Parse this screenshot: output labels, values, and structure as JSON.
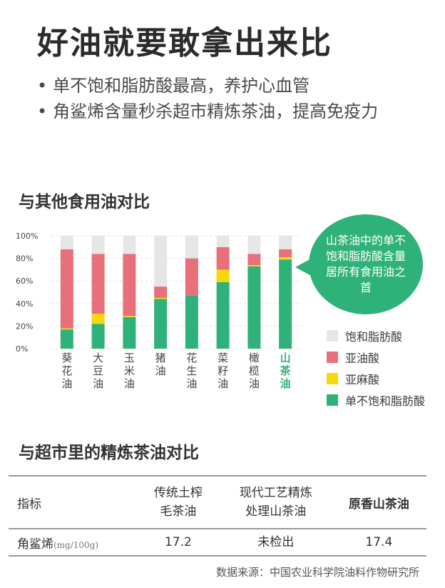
{
  "title": "好油就要敢拿出来比",
  "bullets": [
    "单不饱和脂肪酸最高，养护心血管",
    "角鲨烯含量秒杀超市精炼茶油，提高免疫力"
  ],
  "section1_title": "与其他食用油对比",
  "callout_text": "山茶油中的单不饱和脂肪酸含量居所有食用油之首",
  "chart_data": {
    "type": "bar",
    "stacked": true,
    "categories": [
      "葵花油",
      "大豆油",
      "玉米油",
      "猪油",
      "花生油",
      "菜籽油",
      "橄榄油",
      "山茶油"
    ],
    "highlight_category": "山茶油",
    "y_ticks": [
      "0%",
      "20%",
      "40%",
      "60%",
      "80%",
      "100%"
    ],
    "ylim": [
      0,
      100
    ],
    "grid": true,
    "legend_position": "right",
    "series": [
      {
        "name": "单不饱和脂肪酸",
        "color": "#2fb279",
        "values": [
          17,
          22,
          28,
          44,
          47,
          59,
          73,
          79
        ]
      },
      {
        "name": "亚麻酸",
        "color": "#f5d90a",
        "values": [
          1,
          9,
          1,
          1,
          0,
          11,
          1,
          2
        ]
      },
      {
        "name": "亚油酸",
        "color": "#e8707a",
        "values": [
          70,
          53,
          55,
          10,
          33,
          20,
          10,
          7
        ]
      },
      {
        "name": "饱和脂肪酸",
        "color": "#e6e6e6",
        "values": [
          12,
          16,
          16,
          45,
          20,
          10,
          16,
          12
        ]
      }
    ]
  },
  "legend_order": [
    3,
    2,
    1,
    0
  ],
  "section2_title": "与超市里的精炼茶油对比",
  "table": {
    "header": [
      "指标",
      "传统土榨毛茶油",
      "现代工艺精炼处理山茶油",
      "原香山茶油"
    ],
    "header_lines": [
      [
        "指标"
      ],
      [
        "传统土榨",
        "毛茶油"
      ],
      [
        "现代工艺精炼",
        "处理山茶油"
      ],
      [
        "原香山茶油"
      ]
    ],
    "row_label": "角鲨烯",
    "row_unit": "(mg/100g)",
    "row_values": [
      "17.2",
      "未检出",
      "17.4"
    ]
  },
  "source": "数据来源：中国农业科学院油料作物研究所"
}
